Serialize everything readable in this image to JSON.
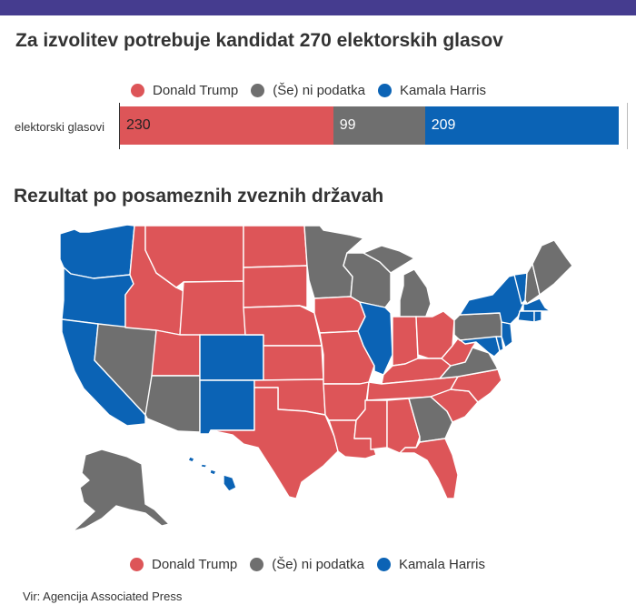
{
  "title": "Za izvolitev potrebuje kandidat 270 elektorskih glasov",
  "legend": [
    {
      "label": "Donald Trump",
      "color": "#dd5558"
    },
    {
      "label": "(Še) ni podatka",
      "color": "#6f6f6f"
    },
    {
      "label": "Kamala Harris",
      "color": "#0b63b5"
    }
  ],
  "bar_label": "elektorski glasovi",
  "chart_data": {
    "type": "bar",
    "stacked": true,
    "categories": [
      "elektorski glasovi"
    ],
    "series": [
      {
        "name": "Donald Trump",
        "values": [
          230
        ],
        "color": "#dd5558",
        "text_color": "#222222"
      },
      {
        "name": "(Še) ni podatka",
        "values": [
          99
        ],
        "color": "#6f6f6f",
        "text_color": "#ffffff"
      },
      {
        "name": "Kamala Harris",
        "values": [
          209
        ],
        "color": "#0b63b5",
        "text_color": "#ffffff"
      }
    ],
    "xlim": [
      0,
      538
    ]
  },
  "map_title": "Rezultat po posameznih zveznih državah",
  "map_data": {
    "colors": {
      "Trump": "#dd5558",
      "Harris": "#0b63b5",
      "none": "#6f6f6f"
    },
    "states": [
      {
        "state": "Washington",
        "result": "Harris"
      },
      {
        "state": "Oregon",
        "result": "Harris"
      },
      {
        "state": "California",
        "result": "Harris"
      },
      {
        "state": "Nevada",
        "result": "none"
      },
      {
        "state": "Idaho",
        "result": "Trump"
      },
      {
        "state": "Montana",
        "result": "Trump"
      },
      {
        "state": "Wyoming",
        "result": "Trump"
      },
      {
        "state": "Utah",
        "result": "Trump"
      },
      {
        "state": "Arizona",
        "result": "none"
      },
      {
        "state": "Colorado",
        "result": "Harris"
      },
      {
        "state": "New Mexico",
        "result": "Harris"
      },
      {
        "state": "North Dakota",
        "result": "Trump"
      },
      {
        "state": "South Dakota",
        "result": "Trump"
      },
      {
        "state": "Nebraska",
        "result": "Trump"
      },
      {
        "state": "Kansas",
        "result": "Trump"
      },
      {
        "state": "Oklahoma",
        "result": "Trump"
      },
      {
        "state": "Texas",
        "result": "Trump"
      },
      {
        "state": "Minnesota",
        "result": "none"
      },
      {
        "state": "Iowa",
        "result": "Trump"
      },
      {
        "state": "Missouri",
        "result": "Trump"
      },
      {
        "state": "Arkansas",
        "result": "Trump"
      },
      {
        "state": "Louisiana",
        "result": "Trump"
      },
      {
        "state": "Wisconsin",
        "result": "none"
      },
      {
        "state": "Illinois",
        "result": "Harris"
      },
      {
        "state": "Michigan",
        "result": "none"
      },
      {
        "state": "Indiana",
        "result": "Trump"
      },
      {
        "state": "Ohio",
        "result": "Trump"
      },
      {
        "state": "Kentucky",
        "result": "Trump"
      },
      {
        "state": "Tennessee",
        "result": "Trump"
      },
      {
        "state": "Mississippi",
        "result": "Trump"
      },
      {
        "state": "Alabama",
        "result": "Trump"
      },
      {
        "state": "Georgia",
        "result": "none"
      },
      {
        "state": "Florida",
        "result": "Trump"
      },
      {
        "state": "South Carolina",
        "result": "Trump"
      },
      {
        "state": "North Carolina",
        "result": "Trump"
      },
      {
        "state": "Virginia",
        "result": "none"
      },
      {
        "state": "West Virginia",
        "result": "Trump"
      },
      {
        "state": "Pennsylvania",
        "result": "none"
      },
      {
        "state": "New York",
        "result": "Harris"
      },
      {
        "state": "Maryland",
        "result": "Harris"
      },
      {
        "state": "Delaware",
        "result": "Harris"
      },
      {
        "state": "New Jersey",
        "result": "Harris"
      },
      {
        "state": "Vermont",
        "result": "Harris"
      },
      {
        "state": "New Hampshire",
        "result": "none"
      },
      {
        "state": "Maine",
        "result": "none"
      },
      {
        "state": "Massachusetts",
        "result": "Harris"
      },
      {
        "state": "Connecticut",
        "result": "Harris"
      },
      {
        "state": "Rhode Island",
        "result": "Harris"
      },
      {
        "state": "Alaska",
        "result": "none"
      },
      {
        "state": "Hawaii",
        "result": "Harris"
      }
    ]
  },
  "source": "Vir: Agencija Associated Press"
}
